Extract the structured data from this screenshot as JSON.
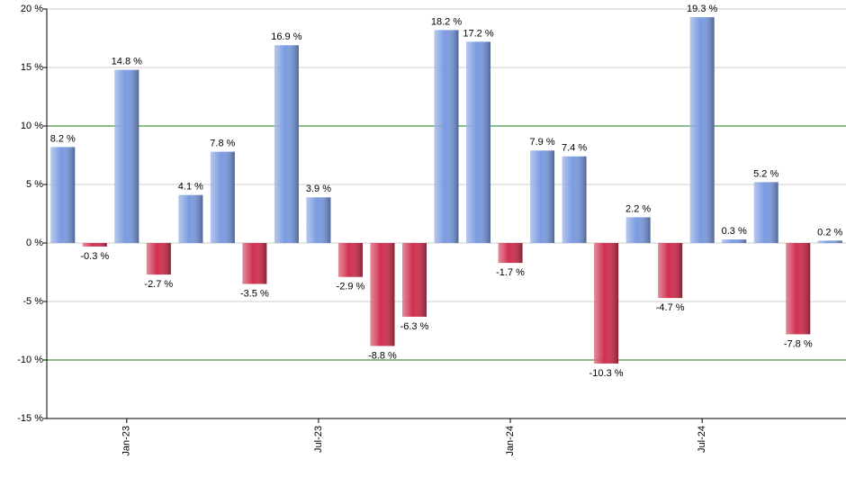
{
  "chart_data": {
    "type": "bar",
    "categories": [
      null,
      null,
      "Jan-23",
      null,
      null,
      null,
      null,
      null,
      "Jul-23",
      null,
      null,
      null,
      null,
      null,
      "Jan-24",
      null,
      null,
      null,
      null,
      null,
      "Jul-24",
      null,
      null,
      null,
      null
    ],
    "values": [
      8.2,
      -0.3,
      14.8,
      -2.7,
      4.1,
      7.8,
      -3.5,
      16.9,
      3.9,
      -2.9,
      -8.8,
      -6.3,
      18.2,
      17.2,
      -1.7,
      7.9,
      7.4,
      -10.3,
      2.2,
      -4.7,
      19.3,
      0.3,
      5.2,
      -7.8,
      0.2
    ],
    "value_labels": [
      "8.2 %",
      "-0.3 %",
      "14.8 %",
      "-2.7 %",
      "4.1 %",
      "7.8 %",
      "-3.5 %",
      "16.9 %",
      "3.9 %",
      "-2.9 %",
      "-8.8 %",
      "-6.3 %",
      "18.2 %",
      "17.2 %",
      "-1.7 %",
      "7.9 %",
      "7.4 %",
      "-10.3 %",
      "2.2 %",
      "-4.7 %",
      "19.3 %",
      "0.3 %",
      "5.2 %",
      "-7.8 %",
      "0.2 %"
    ],
    "positive_color": "#7b9be0",
    "negative_color": "#d0304f",
    "ylim": [
      -15,
      20
    ],
    "yticks": [
      {
        "value": -15,
        "label": "-15 %"
      },
      {
        "value": -10,
        "label": "-10 %"
      },
      {
        "value": -5,
        "label": "-5 %"
      },
      {
        "value": 0,
        "label": "0 %"
      },
      {
        "value": 5,
        "label": "5 %"
      },
      {
        "value": 10,
        "label": "10 %"
      },
      {
        "value": 15,
        "label": "15 %"
      },
      {
        "value": 20,
        "label": "20 %"
      }
    ],
    "grid": true,
    "grid_color": "#cccccc",
    "reference_lines": [
      10,
      -10
    ],
    "reference_color": "#1a7a1a"
  }
}
